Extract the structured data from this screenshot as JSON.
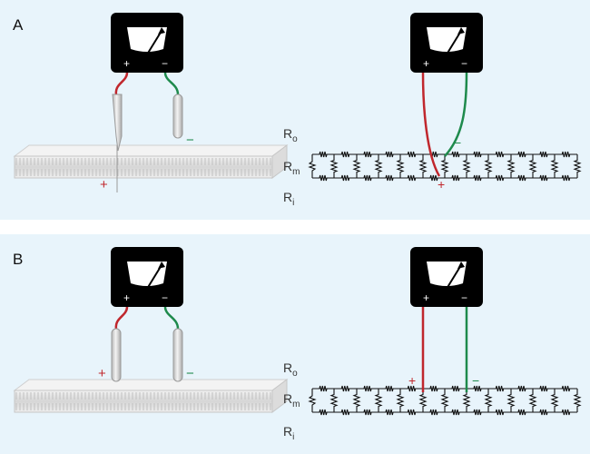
{
  "colors": {
    "background": "#e8f4fb",
    "meter_body": "#000000",
    "meter_face": "#ffffff",
    "positive_wire": "#c0272d",
    "negative_wire": "#1e8a4c",
    "electrode": "#d8d8d8",
    "membrane": "#e4e4e4",
    "resistor": "#111111",
    "label_text": "#333333"
  },
  "meter": {
    "plus": "+",
    "minus": "−",
    "icon": "voltmeter-icon"
  },
  "resistor_labels": {
    "outside": "R",
    "outside_sub": "o",
    "membrane": "R",
    "membrane_sub": "m",
    "inside": "R",
    "inside_sub": "i"
  },
  "panels": [
    {
      "id": "panel-a",
      "letter": "A",
      "electrode_plus": "+",
      "electrode_minus": "−",
      "circuit_plus": "+",
      "circuit_minus": "−"
    },
    {
      "id": "panel-b",
      "letter": "B",
      "electrode_plus": "+",
      "electrode_minus": "−",
      "circuit_plus": "+",
      "circuit_minus": "−"
    }
  ]
}
